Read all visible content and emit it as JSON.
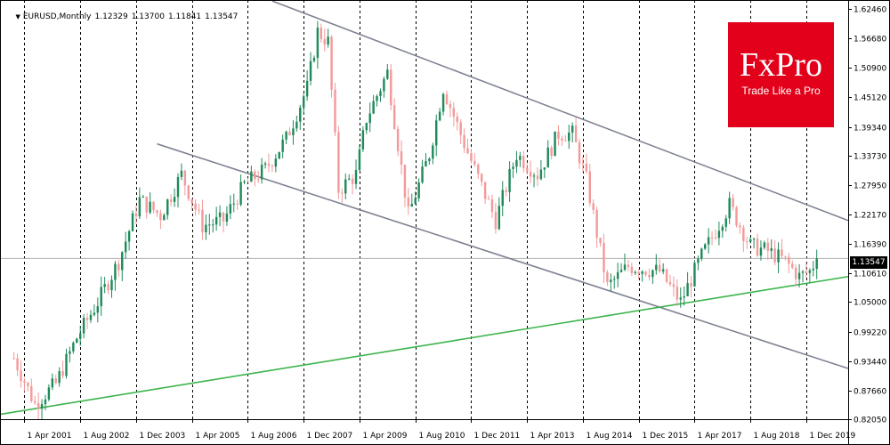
{
  "header": {
    "symbol": "EURUSD,Monthly",
    "open": "1.12329",
    "high": "1.13700",
    "low": "1.11841",
    "close": "1.13547"
  },
  "logo": {
    "brand": "FxPro",
    "tagline": "Trade Like a Pro"
  },
  "current_price": "1.13547",
  "colors": {
    "bull": "#1f8a5b",
    "bear": "#f39a9a",
    "channel": "#7f8392",
    "support": "#3cb44b",
    "grid": "#000000",
    "brand": "#e2001a"
  },
  "chart_data": {
    "type": "candlestick",
    "title": "",
    "timeframe": "Monthly",
    "x_tick_labels": [
      "1 Apr 2001",
      "1 Aug 2002",
      "1 Dec 2003",
      "1 Apr 2005",
      "1 Aug 2006",
      "1 Dec 2007",
      "1 Apr 2009",
      "1 Aug 2010",
      "1 Dec 2011",
      "1 Apr 2013",
      "1 Aug 2014",
      "1 Dec 2015",
      "1 Apr 2017",
      "1 Aug 2018",
      "1 Dec 2019"
    ],
    "y_tick_labels": [
      "1.62460",
      "1.56680",
      "1.50900",
      "1.45120",
      "1.39340",
      "1.33730",
      "1.27950",
      "1.22170",
      "1.16390",
      "1.10610",
      "1.05000",
      "0.99220",
      "0.93440",
      "0.87660",
      "0.82050"
    ],
    "ylim": [
      0.8205,
      1.6246
    ],
    "current_price": 1.13547,
    "price_series": {
      "x": [
        "2001-01",
        "2001-07",
        "2002-01",
        "2002-07",
        "2003-01",
        "2003-07",
        "2004-01",
        "2004-07",
        "2005-01",
        "2005-07",
        "2006-01",
        "2006-07",
        "2007-01",
        "2007-07",
        "2008-01",
        "2008-04",
        "2008-07",
        "2008-10",
        "2009-03",
        "2009-06",
        "2009-12",
        "2010-06",
        "2010-12",
        "2011-04",
        "2011-10",
        "2012-07",
        "2013-01",
        "2013-07",
        "2014-01",
        "2014-05",
        "2014-09",
        "2015-03",
        "2015-09",
        "2016-06",
        "2016-12",
        "2017-06",
        "2018-02",
        "2018-08",
        "2019-01",
        "2019-06",
        "2019-10",
        "2020-01",
        "2020-03"
      ],
      "close": [
        0.94,
        0.85,
        0.89,
        0.98,
        1.05,
        1.13,
        1.25,
        1.22,
        1.3,
        1.2,
        1.21,
        1.28,
        1.31,
        1.37,
        1.47,
        1.58,
        1.56,
        1.27,
        1.3,
        1.41,
        1.5,
        1.22,
        1.34,
        1.47,
        1.36,
        1.21,
        1.34,
        1.3,
        1.38,
        1.38,
        1.29,
        1.08,
        1.12,
        1.11,
        1.05,
        1.14,
        1.24,
        1.16,
        1.15,
        1.13,
        1.1,
        1.11,
        1.135
      ]
    },
    "lines": [
      {
        "name": "channel-upper",
        "points": [
          [
            "2007-03",
            1.64
          ],
          [
            "2020-12",
            1.21
          ]
        ]
      },
      {
        "name": "channel-lower",
        "points": [
          [
            "2004-06",
            1.36
          ],
          [
            "2020-12",
            0.92
          ]
        ]
      },
      {
        "name": "support-trendline",
        "points": [
          [
            "2000-09",
            0.83
          ],
          [
            "2020-12",
            1.1
          ]
        ]
      }
    ],
    "grid": true,
    "legend": "none"
  }
}
